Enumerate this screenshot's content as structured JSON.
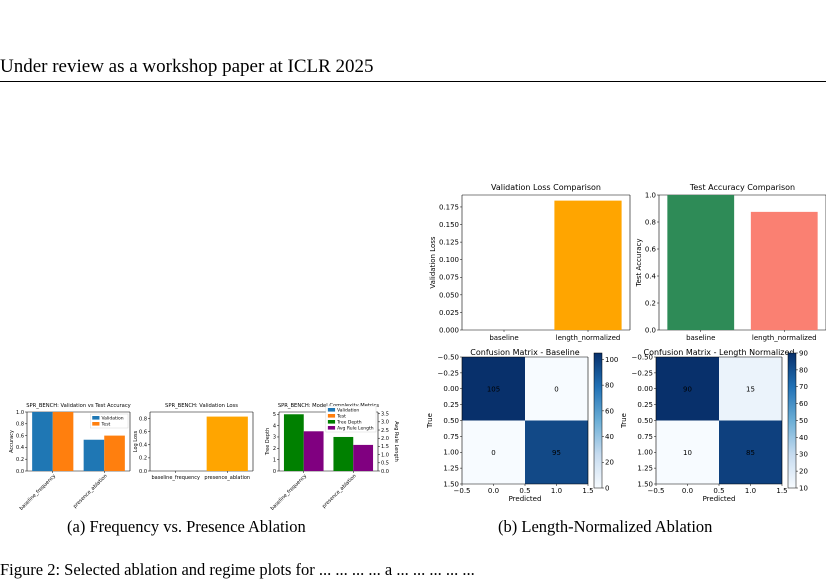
{
  "header": "Under review as a workshop paper at ICLR 2025",
  "captions": {
    "a": "(a)  Frequency vs. Presence Ablation",
    "b": "(b)  Length-Normalized Ablation",
    "figure_partial": "Figure 2: Selected ablation and regime plots for ... ... ... ... a ... ... ... ... ..."
  },
  "colors": {
    "validation": "#1f77b4",
    "test": "#ff7f0e",
    "tree_depth": "#008000",
    "avg_rule_length": "#800080",
    "orange": "#ffa500",
    "seagreen": "#2e8b57",
    "salmon": "#fa8072"
  },
  "chart_data": [
    {
      "id": "a1",
      "type": "bar",
      "title": "SPR_BENCH: Validation vs Test Accuracy",
      "ylabel": "Accuracy",
      "ylim": [
        0,
        1.0
      ],
      "yticks": [
        "0.0",
        "0.2",
        "0.4",
        "0.6",
        "0.8",
        "1.0"
      ],
      "categories": [
        "baseline_frequency",
        "presence_ablation"
      ],
      "series": [
        {
          "name": "Validation",
          "values": [
            1.0,
            0.53
          ]
        },
        {
          "name": "Test",
          "values": [
            1.0,
            0.6
          ]
        }
      ],
      "legend": "top-right"
    },
    {
      "id": "a2",
      "type": "bar",
      "title": "SPR_BENCH: Validation Loss",
      "ylabel": "Log Loss",
      "ylim": [
        0,
        0.9
      ],
      "yticks": [
        "0.0",
        "0.2",
        "0.4",
        "0.6",
        "0.8"
      ],
      "categories": [
        "baseline_frequency",
        "presence_ablation"
      ],
      "values": [
        0.0,
        0.83
      ]
    },
    {
      "id": "a3",
      "type": "bar",
      "title": "SPR_BENCH: Model Complexity Metrics",
      "ylabel": "Tree Depth",
      "y2label": "Avg Rule Length",
      "ylim": [
        0,
        5.2
      ],
      "y2lim": [
        0,
        3.6
      ],
      "yticks": [
        "0",
        "1",
        "2",
        "3",
        "4",
        "5"
      ],
      "y2ticks": [
        "0.0",
        "0.5",
        "1.0",
        "1.5",
        "2.0",
        "2.5",
        "3.0",
        "3.5"
      ],
      "categories": [
        "baseline_frequency",
        "presence_ablation"
      ],
      "series": [
        {
          "name": "Tree Depth",
          "values": [
            5,
            3
          ]
        },
        {
          "name": "Avg Rule Length",
          "values": [
            3.5,
            2.3
          ]
        }
      ],
      "legend_entries": [
        "Validation",
        "Test",
        "Tree Depth",
        "Avg Rule Length"
      ],
      "legend": "top-right"
    },
    {
      "id": "b1",
      "type": "bar",
      "title": "Validation Loss Comparison",
      "ylabel": "Validation Loss",
      "ylim": [
        0,
        0.192
      ],
      "yticks": [
        "0.000",
        "0.025",
        "0.050",
        "0.075",
        "0.100",
        "0.125",
        "0.150",
        "0.175"
      ],
      "categories": [
        "baseline",
        "length_normalized"
      ],
      "values": [
        0.0,
        0.184
      ]
    },
    {
      "id": "b2",
      "type": "bar",
      "title": "Test Accuracy Comparison",
      "ylabel": "Test Accuracy",
      "ylim": [
        0,
        1.0
      ],
      "yticks": [
        "0.0",
        "0.2",
        "0.4",
        "0.6",
        "0.8",
        "1.0"
      ],
      "categories": [
        "baseline",
        "length_normalized"
      ],
      "values": [
        1.0,
        0.875
      ]
    },
    {
      "id": "b3",
      "type": "heatmap",
      "title": "Confusion Matrix - Baseline",
      "xlabel": "Predicted",
      "ylabel": "True",
      "matrix": [
        [
          105,
          0
        ],
        [
          0,
          95
        ]
      ],
      "vmin": 0,
      "vmax": 105,
      "yticks": [
        "−0.50",
        "−0.25",
        "0.00",
        "0.25",
        "0.50",
        "0.75",
        "1.00",
        "1.25",
        "1.50"
      ],
      "xticks": [
        "−0.5",
        "0.0",
        "0.5",
        "1.0",
        "1.5"
      ],
      "cbar_ticks": [
        0,
        20,
        40,
        60,
        80,
        100
      ]
    },
    {
      "id": "b4",
      "type": "heatmap",
      "title": "Confusion Matrix - Length Normalized",
      "xlabel": "Predicted",
      "ylabel": "True",
      "matrix": [
        [
          90,
          15
        ],
        [
          10,
          85
        ]
      ],
      "vmin": 10,
      "vmax": 90,
      "yticks": [
        "−0.50",
        "−0.25",
        "0.00",
        "0.25",
        "0.50",
        "0.75",
        "1.00",
        "1.25",
        "1.50"
      ],
      "xticks": [
        "−0.5",
        "0.0",
        "0.5",
        "1.0",
        "1.5"
      ],
      "cbar_ticks": [
        10,
        20,
        30,
        40,
        50,
        60,
        70,
        80,
        90
      ]
    }
  ]
}
